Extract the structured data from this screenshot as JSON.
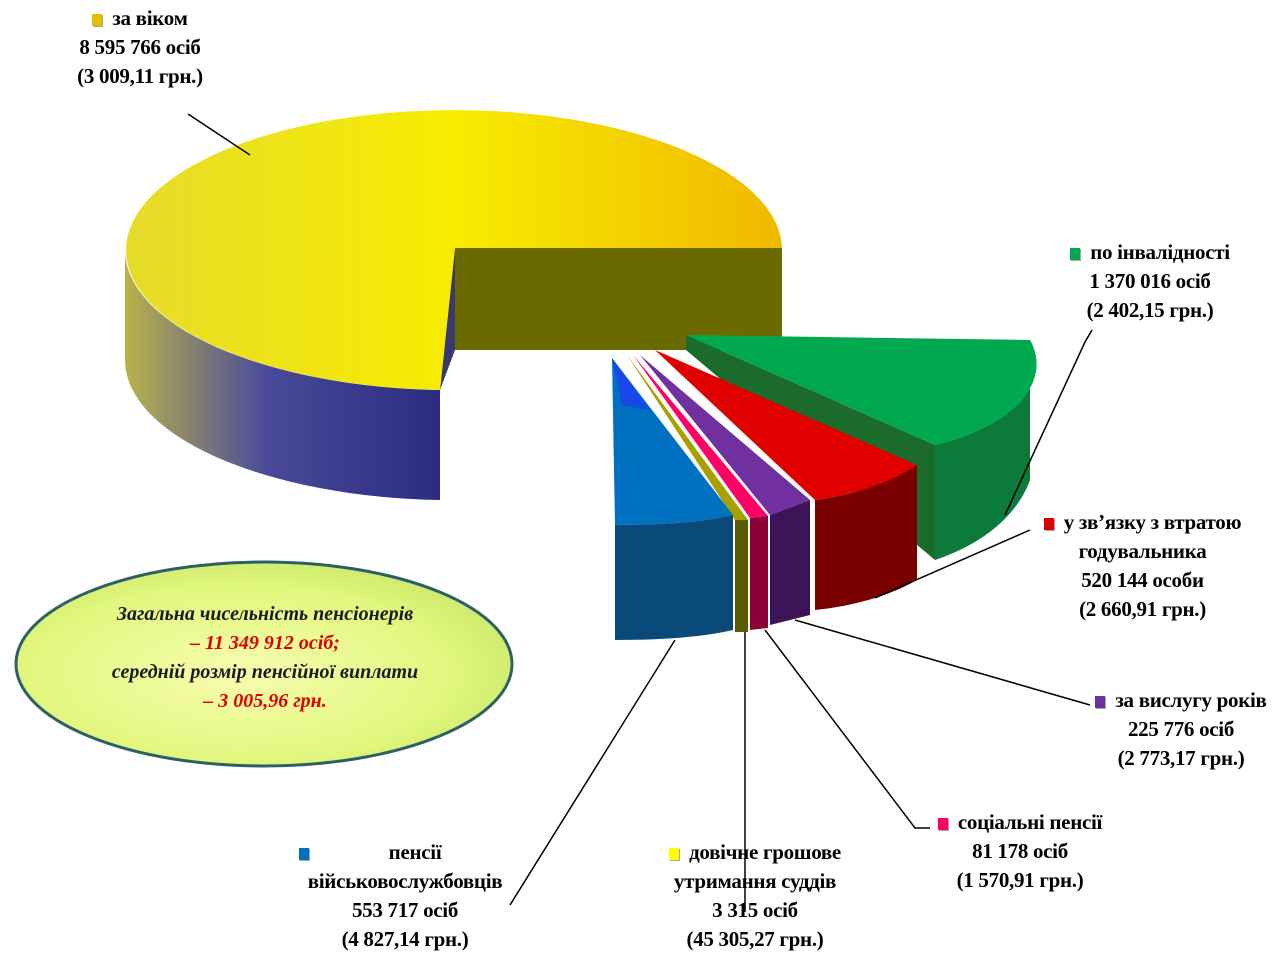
{
  "chart_data": {
    "type": "pie",
    "style": "3d-exploded",
    "slices": [
      {
        "key": "age",
        "name": "за віком",
        "value_text": "8 595 766 осіб",
        "avg_text": "(3 009,11 грн.)",
        "value": 8595766,
        "avg_pension": 3009.11,
        "color": "#f2d200"
      },
      {
        "key": "disability",
        "name": "по інвалідності",
        "value_text": "1 370 016 осіб",
        "avg_text": "(2 402,15 грн.)",
        "value": 1370016,
        "avg_pension": 2402.15,
        "color": "#00a94f"
      },
      {
        "key": "breadwinner",
        "name": "у зв’язку з втратою годувальника",
        "name_lines": [
          "у зв’язку з втратою",
          "годувальника"
        ],
        "value_text": "520 144 особи",
        "avg_text": "(2 660,91 грн.)",
        "value": 520144,
        "avg_pension": 2660.91,
        "color": "#e00000"
      },
      {
        "key": "service",
        "name": "за вислугу років",
        "value_text": "225 776 осіб",
        "avg_text": "(2 773,17 грн.)",
        "value": 225776,
        "avg_pension": 2773.17,
        "color": "#7030a0"
      },
      {
        "key": "social",
        "name": "соціальні пенсії",
        "value_text": "81 178  осіб",
        "avg_text": "(1 570,91 грн.)",
        "value": 81178,
        "avg_pension": 1570.91,
        "color": "#ff0066"
      },
      {
        "key": "judges",
        "name": "довічне грошове утримання суддів",
        "name_lines": [
          "довічне грошове",
          "утримання суддів"
        ],
        "value_text": "3 315 осіб",
        "avg_text": "(45 305,27 грн.)",
        "value": 3315,
        "avg_pension": 45305.27,
        "color": "#ffff00"
      },
      {
        "key": "military",
        "name": "пенсії військовослужбовців",
        "name_lines": [
          "пенсії",
          "військовослужбовців"
        ],
        "value_text": "553 717  осіб",
        "avg_text": "(4 827,14 грн.)",
        "value": 553717,
        "avg_pension": 4827.14,
        "color": "#0070c0"
      }
    ]
  },
  "summary": {
    "line1": "Загальна чисельність пенсіонерів",
    "line2": "– 11 349 912 осіб;",
    "line3": "середній розмір пенсійної виплати",
    "line4": "–  3 005,96 грн."
  }
}
